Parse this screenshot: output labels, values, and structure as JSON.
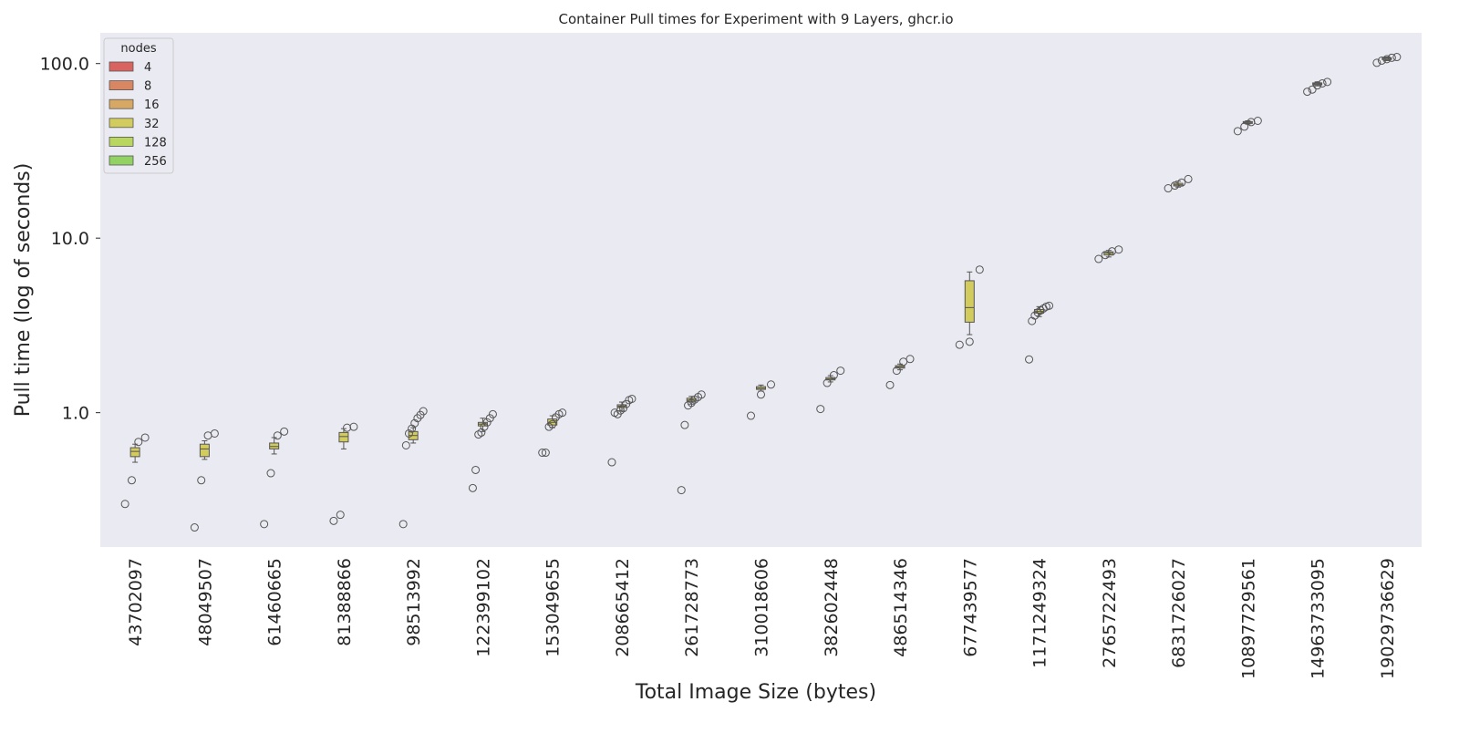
{
  "chart_data": {
    "type": "box",
    "title": "Container Pull times for Experiment with 9 Layers, ghcr.io",
    "xlabel": "Total Image Size (bytes)",
    "ylabel": "Pull time (log of seconds)",
    "y_scale": "log",
    "ylim": [
      0.17,
      150
    ],
    "y_ticks": [
      1.0,
      10.0,
      100.0
    ],
    "y_tick_labels": [
      "1.0",
      "10.0",
      "100.0"
    ],
    "grid": false,
    "background": "#eaeaf2",
    "legend": {
      "title": "nodes",
      "placement": "top-left",
      "entries": [
        {
          "label": "4",
          "color": "#d9635f"
        },
        {
          "label": "8",
          "color": "#d88762"
        },
        {
          "label": "16",
          "color": "#d7a863"
        },
        {
          "label": "32",
          "color": "#d2cb5e"
        },
        {
          "label": "128",
          "color": "#b9d661"
        },
        {
          "label": "256",
          "color": "#92d164"
        }
      ]
    },
    "categories": [
      "43702097",
      "48049507",
      "61460665",
      "81388866",
      "98513992",
      "122399102",
      "153049655",
      "208665412",
      "261728773",
      "310018606",
      "382602448",
      "486514346",
      "677439577",
      "1171249324",
      "2765722493",
      "6831726027",
      "10897729561",
      "14963733095",
      "19029736629"
    ],
    "boxes": [
      {
        "q1": 0.56,
        "median": 0.6,
        "q3": 0.63,
        "whisker_low": 0.52,
        "whisker_high": 0.66,
        "fliers": [
          0.3,
          0.41,
          0.68,
          0.72
        ]
      },
      {
        "q1": 0.56,
        "median": 0.62,
        "q3": 0.66,
        "whisker_low": 0.54,
        "whisker_high": 0.69,
        "fliers": [
          0.22,
          0.41,
          0.74,
          0.76
        ]
      },
      {
        "q1": 0.62,
        "median": 0.64,
        "q3": 0.67,
        "whisker_low": 0.58,
        "whisker_high": 0.72,
        "fliers": [
          0.23,
          0.45,
          0.74,
          0.78
        ]
      },
      {
        "q1": 0.68,
        "median": 0.73,
        "q3": 0.77,
        "whisker_low": 0.62,
        "whisker_high": 0.81,
        "fliers": [
          0.24,
          0.26,
          0.82,
          0.83
        ]
      },
      {
        "q1": 0.7,
        "median": 0.74,
        "q3": 0.78,
        "whisker_low": 0.67,
        "whisker_high": 0.82,
        "fliers": [
          0.23,
          0.65,
          0.76,
          0.81,
          0.87,
          0.93,
          0.97,
          1.02
        ]
      },
      {
        "q1": 0.84,
        "median": 0.86,
        "q3": 0.88,
        "whisker_low": 0.78,
        "whisker_high": 0.93,
        "fliers": [
          0.37,
          0.47,
          0.75,
          0.77,
          0.83,
          0.88,
          0.93,
          0.98
        ]
      },
      {
        "q1": 0.85,
        "median": 0.88,
        "q3": 0.92,
        "whisker_low": 0.82,
        "whisker_high": 0.96,
        "fliers": [
          0.59,
          0.59,
          0.83,
          0.86,
          0.94,
          0.98,
          1.0
        ]
      },
      {
        "q1": 1.07,
        "median": 1.09,
        "q3": 1.11,
        "whisker_low": 1.03,
        "whisker_high": 1.15,
        "fliers": [
          0.52,
          1.0,
          0.98,
          1.03,
          1.06,
          1.12,
          1.18,
          1.2
        ]
      },
      {
        "q1": 1.16,
        "median": 1.18,
        "q3": 1.21,
        "whisker_low": 1.12,
        "whisker_high": 1.24,
        "fliers": [
          0.36,
          0.85,
          1.1,
          1.14,
          1.19,
          1.23,
          1.27
        ]
      },
      {
        "q1": 1.36,
        "median": 1.38,
        "q3": 1.41,
        "whisker_low": 1.33,
        "whisker_high": 1.44,
        "fliers": [
          0.96,
          1.27,
          1.45
        ]
      },
      {
        "q1": 1.54,
        "median": 1.56,
        "q3": 1.59,
        "whisker_low": 1.5,
        "whisker_high": 1.63,
        "fliers": [
          1.05,
          1.48,
          1.64,
          1.74
        ]
      },
      {
        "q1": 1.8,
        "median": 1.83,
        "q3": 1.86,
        "whisker_low": 1.76,
        "whisker_high": 1.9,
        "fliers": [
          1.44,
          1.74,
          1.96,
          2.03
        ]
      },
      {
        "q1": 3.3,
        "median": 4.0,
        "q3": 5.7,
        "whisker_low": 2.8,
        "whisker_high": 6.4,
        "fliers": [
          2.45,
          2.55,
          6.6
        ]
      },
      {
        "q1": 3.72,
        "median": 3.8,
        "q3": 3.9,
        "whisker_low": 3.55,
        "whisker_high": 4.05,
        "fliers": [
          2.02,
          3.35,
          3.6,
          3.75,
          3.85,
          3.95,
          4.05,
          4.1
        ]
      },
      {
        "q1": 8.0,
        "median": 8.2,
        "q3": 8.35,
        "whisker_low": 7.8,
        "whisker_high": 8.5,
        "fliers": [
          7.6,
          8.0,
          8.4,
          8.6
        ]
      },
      {
        "q1": 19.9,
        "median": 20.2,
        "q3": 20.6,
        "whisker_low": 19.6,
        "whisker_high": 21.2,
        "fliers": [
          19.3,
          20.0,
          20.8,
          21.8
        ]
      },
      {
        "q1": 45.5,
        "median": 46.0,
        "q3": 46.5,
        "whisker_low": 45.0,
        "whisker_high": 47.0,
        "fliers": [
          41.0,
          43.5,
          46.2,
          47.0
        ]
      },
      {
        "q1": 75.5,
        "median": 76.5,
        "q3": 77.5,
        "whisker_low": 74.5,
        "whisker_high": 78.5,
        "fliers": [
          69.0,
          71.0,
          75.0,
          77.0,
          78.5
        ]
      },
      {
        "q1": 105.5,
        "median": 107.0,
        "q3": 108.0,
        "whisker_low": 104.0,
        "whisker_high": 109.0,
        "fliers": [
          101.0,
          104.0,
          106.0,
          108.0,
          109.0
        ]
      }
    ]
  }
}
